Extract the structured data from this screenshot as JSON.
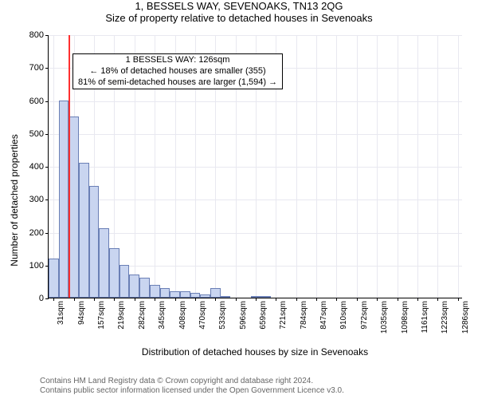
{
  "header": {
    "title": "1, BESSELS WAY, SEVENOAKS, TN13 2QG",
    "subtitle": "Size of property relative to detached houses in Sevenoaks"
  },
  "chart": {
    "type": "histogram",
    "ylabel": "Number of detached properties",
    "xlabel": "Distribution of detached houses by size in Sevenoaks",
    "ylim": [
      0,
      800
    ],
    "ytick_step": 100,
    "background_color": "#ffffff",
    "grid_color": "#e8e8f0",
    "y_ticks": [
      0,
      100,
      200,
      300,
      400,
      500,
      600,
      700,
      800
    ],
    "x_tick_labels": [
      "31sqm",
      "94sqm",
      "157sqm",
      "219sqm",
      "282sqm",
      "345sqm",
      "408sqm",
      "470sqm",
      "533sqm",
      "596sqm",
      "659sqm",
      "721sqm",
      "784sqm",
      "847sqm",
      "910sqm",
      "972sqm",
      "1035sqm",
      "1098sqm",
      "1161sqm",
      "1223sqm",
      "1286sqm"
    ],
    "bars": {
      "values": [
        120,
        600,
        550,
        410,
        340,
        210,
        150,
        100,
        70,
        60,
        40,
        30,
        20,
        20,
        15,
        10,
        30,
        5,
        0,
        0,
        5,
        5,
        0,
        0,
        0,
        0,
        0,
        0,
        0,
        0,
        0,
        0,
        0,
        0,
        0,
        0,
        0,
        0,
        0,
        0,
        0
      ],
      "fill_color": "#c9d5f0",
      "border_color": "#6a7fb5",
      "border_width": 1
    },
    "marker": {
      "color": "#ff3030",
      "position_bar_index": 1.5
    },
    "annotation": {
      "line1": "1 BESSELS WAY: 126sqm",
      "line2": "← 18% of detached houses are smaller (355)",
      "line3": "81% of semi-detached houses are larger (1,594) →",
      "top_frac_from_top": 0.07
    }
  },
  "footer": {
    "line1": "Contains HM Land Registry data © Crown copyright and database right 2024.",
    "line2": "Contains public sector information licensed under the Open Government Licence v3.0."
  }
}
